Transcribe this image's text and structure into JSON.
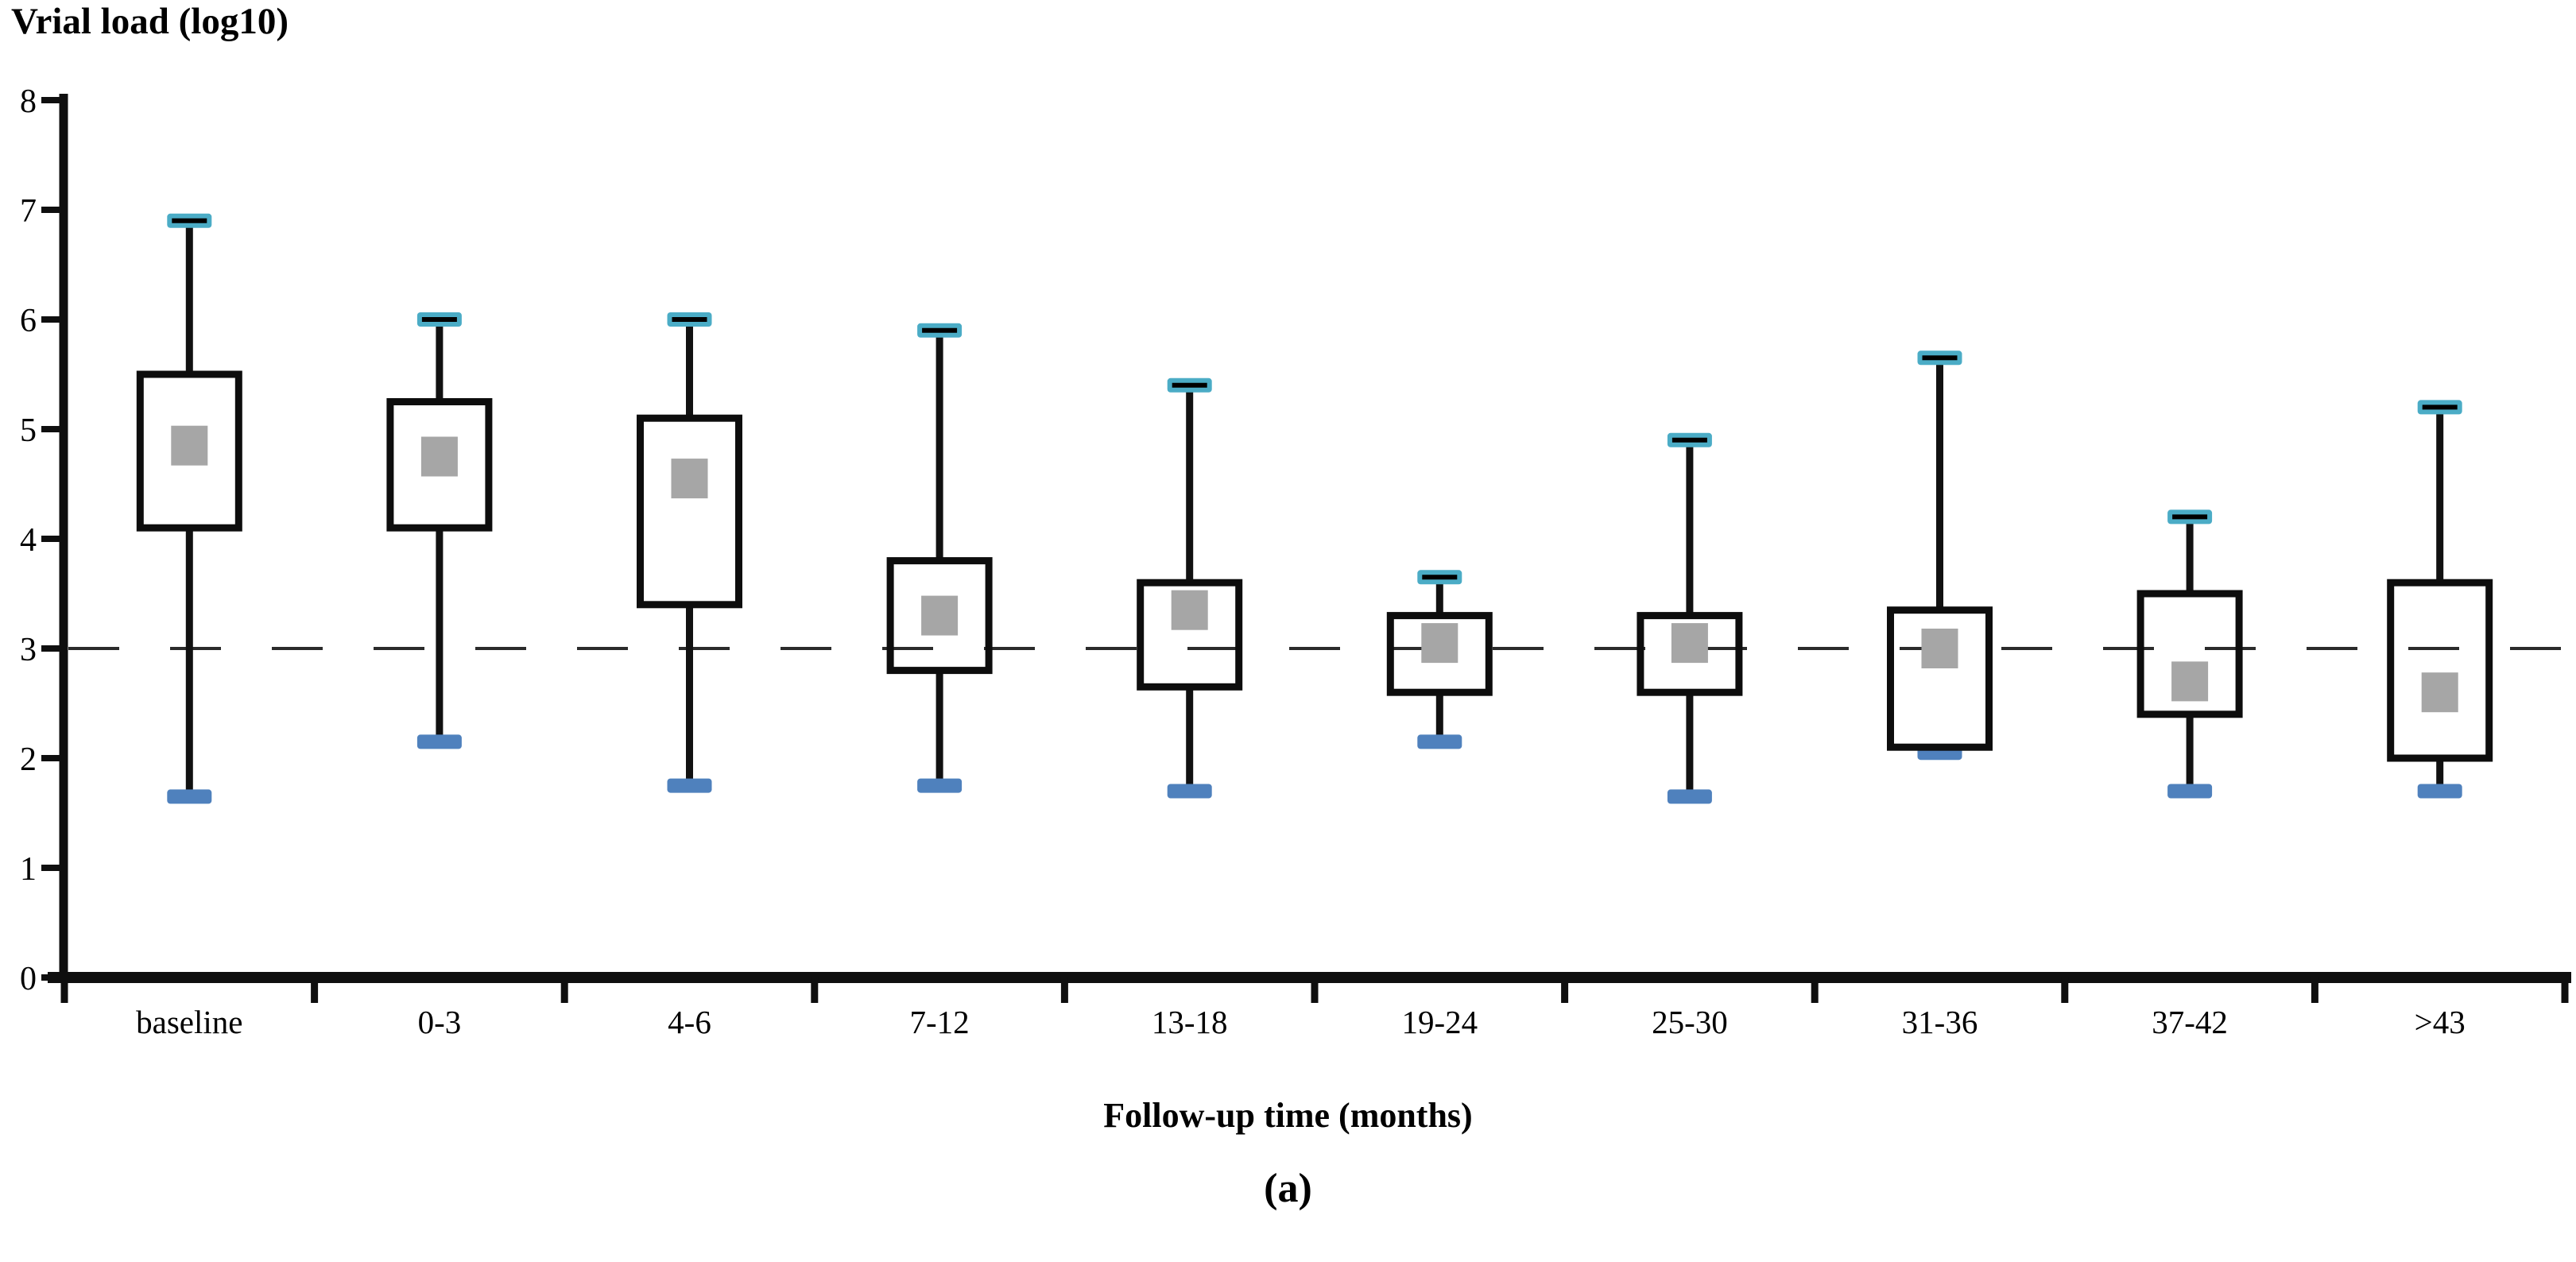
{
  "page": {
    "background": "#ffffff"
  },
  "chart": {
    "title": "Vrial load (log10)",
    "x_axis_title": "Follow-up time (months)",
    "caption": "(a)"
  },
  "chart_data": {
    "type": "boxplot",
    "title": "Vrial load (log10)",
    "xlabel": "Follow-up time (months)",
    "ylabel": "Vrial load (log10)",
    "caption": "(a)",
    "ylim": [
      0,
      8
    ],
    "y_ticks": [
      0,
      1,
      2,
      3,
      4,
      5,
      6,
      7,
      8
    ],
    "reference_line_y": 3,
    "grid": false,
    "legend": "none",
    "categories": [
      "baseline",
      "0-3",
      "4-6",
      "7-12",
      "13-18",
      "19-24",
      "25-30",
      "31-36",
      "37-42",
      ">43"
    ],
    "series": [
      {
        "category": "baseline",
        "whisker_low": 1.7,
        "q1": 4.1,
        "mean": 4.85,
        "q3": 5.5,
        "whisker_high": 6.9
      },
      {
        "category": "0-3",
        "whisker_low": 2.2,
        "q1": 4.1,
        "mean": 4.75,
        "q3": 5.25,
        "whisker_high": 6.0
      },
      {
        "category": "4-6",
        "whisker_low": 1.8,
        "q1": 3.4,
        "mean": 4.55,
        "q3": 5.1,
        "whisker_high": 6.0
      },
      {
        "category": "7-12",
        "whisker_low": 1.8,
        "q1": 2.8,
        "mean": 3.3,
        "q3": 3.8,
        "whisker_high": 5.9
      },
      {
        "category": "13-18",
        "whisker_low": 1.75,
        "q1": 2.65,
        "mean": 3.35,
        "q3": 3.6,
        "whisker_high": 5.4
      },
      {
        "category": "19-24",
        "whisker_low": 2.2,
        "q1": 2.6,
        "mean": 3.05,
        "q3": 3.3,
        "whisker_high": 3.65
      },
      {
        "category": "25-30",
        "whisker_low": 1.7,
        "q1": 2.6,
        "mean": 3.05,
        "q3": 3.3,
        "whisker_high": 4.9
      },
      {
        "category": "31-36",
        "whisker_low": 2.1,
        "q1": 2.1,
        "mean": 3.0,
        "q3": 3.35,
        "whisker_high": 5.65
      },
      {
        "category": "37-42",
        "whisker_low": 1.75,
        "q1": 2.4,
        "mean": 2.7,
        "q3": 3.5,
        "whisker_high": 4.2
      },
      {
        "category": ">43",
        "whisker_low": 1.75,
        "q1": 2.0,
        "mean": 2.6,
        "q3": 3.6,
        "whisker_high": 5.2
      }
    ],
    "colors": {
      "box_border": "#0d0d0d",
      "whisker": "#111111",
      "mean_marker": "#a6a6a6",
      "top_cap": "#4bacc6",
      "top_cap_line": "#000000",
      "bottom_cap": "#4f81bd",
      "reference_line": "#2b2b2b",
      "axis": "#0f0f0f",
      "text": "#000000"
    }
  }
}
